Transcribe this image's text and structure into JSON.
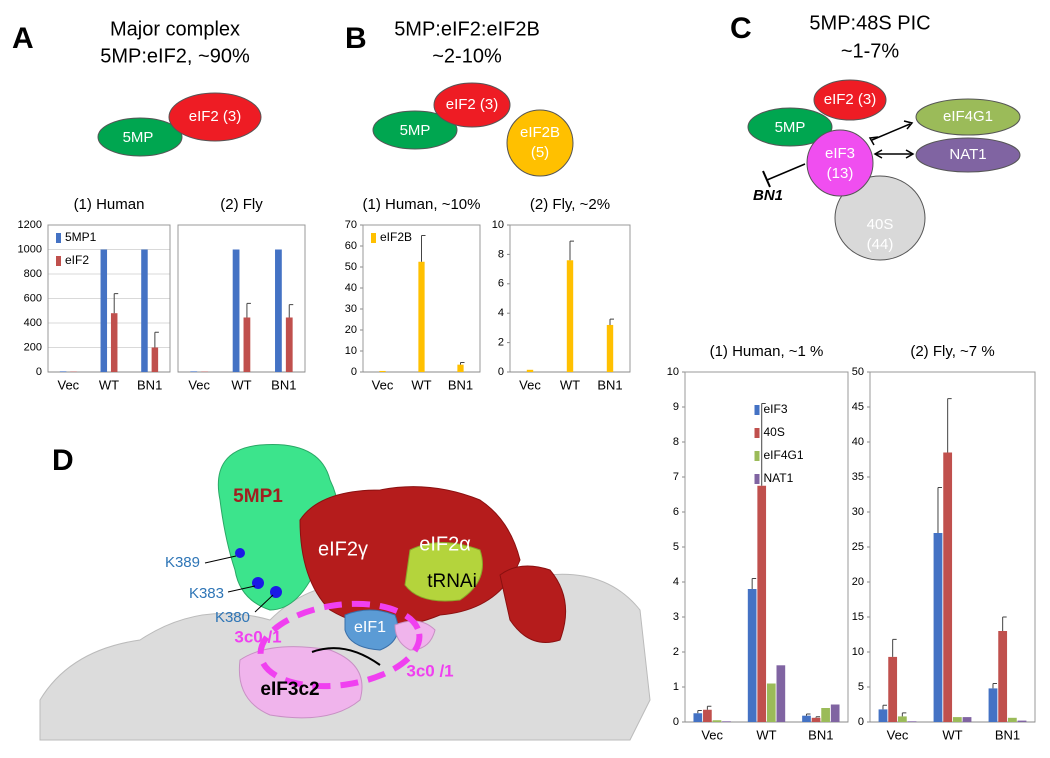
{
  "panels": [
    {
      "letter": "A",
      "title": [
        "Major complex",
        "5MP:eIF2, ~90%"
      ],
      "nodes": [
        "5MP",
        "eIF2 (3)"
      ]
    },
    {
      "letter": "B",
      "title": [
        "5MP:eIF2:eIF2B",
        "~2-10%"
      ],
      "nodes": [
        "5MP",
        "eIF2 (3)",
        "eIF2B",
        "(5)"
      ]
    },
    {
      "letter": "C",
      "title": [
        "5MP:48S PIC",
        "~1-7%"
      ],
      "nodes": [
        "eIF2 (3)",
        "5MP",
        "eIF4G1",
        "eIF3",
        "(13)",
        "NAT1",
        "40S",
        "(44)"
      ],
      "inhibitor": "BN1"
    },
    {
      "letter": "D",
      "labels": [
        "5MP1",
        "eIF2γ",
        "eIF2α",
        "tRNAi",
        "eIF1",
        "K389",
        "K383",
        "K380",
        "3c0 /1",
        "3c0 /1",
        "eIF3c2"
      ]
    }
  ],
  "chart_data": [
    {
      "type": "bar",
      "title": "(1) Human",
      "categories": [
        "Vec",
        "WT",
        "BN1"
      ],
      "ylim": [
        0,
        1200
      ],
      "yticks": [
        0,
        200,
        400,
        600,
        800,
        1000,
        1200
      ],
      "grid": true,
      "legend": "upper left",
      "series": [
        {
          "name": "5MP1",
          "color": "#4472c4",
          "values": [
            5,
            1000,
            1000
          ],
          "errors": [
            null,
            null,
            null
          ]
        },
        {
          "name": "eIF2",
          "color": "#c0504d",
          "values": [
            3,
            480,
            200
          ],
          "errors": [
            null,
            160,
            125
          ]
        }
      ]
    },
    {
      "type": "bar",
      "title": "(2) Fly",
      "categories": [
        "Vec",
        "WT",
        "BN1"
      ],
      "ylim": [
        0,
        1200
      ],
      "grid": true,
      "series": [
        {
          "color": "#4472c4",
          "values": [
            5,
            1000,
            1000
          ],
          "errors": [
            null,
            null,
            null
          ]
        },
        {
          "color": "#c0504d",
          "values": [
            3,
            445,
            445
          ],
          "errors": [
            null,
            115,
            105
          ]
        }
      ]
    },
    {
      "type": "bar",
      "title": "(1) Human, ~10%",
      "categories": [
        "Vec",
        "WT",
        "BN1"
      ],
      "ylim": [
        0,
        70
      ],
      "yticks": [
        0,
        10,
        20,
        30,
        40,
        50,
        60,
        70
      ],
      "legend": "upper left",
      "series": [
        {
          "name": "eIF2B",
          "color": "#ffc000",
          "values": [
            0.5,
            52.5,
            3.5
          ],
          "errors": [
            null,
            12.5,
            1
          ]
        }
      ]
    },
    {
      "type": "bar",
      "title": "(2) Fly, ~2%",
      "categories": [
        "Vec",
        "WT",
        "BN1"
      ],
      "ylim": [
        0,
        10
      ],
      "yticks": [
        0,
        2,
        4,
        6,
        8,
        10
      ],
      "series": [
        {
          "color": "#ffc000",
          "values": [
            0.15,
            7.6,
            3.2
          ],
          "errors": [
            null,
            1.3,
            0.4
          ]
        }
      ]
    },
    {
      "type": "bar",
      "title": "(1) Human, ~1 %",
      "categories": [
        "Vec",
        "WT",
        "BN1"
      ],
      "ylim": [
        0,
        10
      ],
      "yticks": [
        0,
        1,
        2,
        3,
        4,
        5,
        6,
        7,
        8,
        9,
        10
      ],
      "legend": "upper center",
      "series": [
        {
          "name": "eIF3",
          "color": "#4472c4",
          "values": [
            0.25,
            3.8,
            0.18
          ],
          "errors": [
            0.08,
            0.3,
            0.05
          ]
        },
        {
          "name": "40S",
          "color": "#c0504d",
          "values": [
            0.35,
            6.75,
            0.12
          ],
          "errors": [
            0.1,
            2.35,
            0.03
          ]
        },
        {
          "name": "eIF4G1",
          "color": "#9bbb59",
          "values": [
            0.05,
            1.1,
            0.4
          ],
          "errors": [
            null,
            null,
            null
          ]
        },
        {
          "name": "NAT1",
          "color": "#8064a2",
          "values": [
            0.02,
            1.62,
            0.5
          ],
          "errors": [
            null,
            null,
            null
          ]
        }
      ]
    },
    {
      "type": "bar",
      "title": "(2) Fly, ~7 %",
      "categories": [
        "Vec",
        "WT",
        "BN1"
      ],
      "ylim": [
        0,
        50
      ],
      "yticks": [
        0,
        5,
        10,
        15,
        20,
        25,
        30,
        35,
        40,
        45,
        50
      ],
      "series": [
        {
          "color": "#4472c4",
          "values": [
            1.8,
            27,
            4.8
          ],
          "errors": [
            0.6,
            6.5,
            0.7
          ]
        },
        {
          "color": "#c0504d",
          "values": [
            9.3,
            38.5,
            13
          ],
          "errors": [
            2.5,
            7.7,
            2
          ]
        },
        {
          "color": "#9bbb59",
          "values": [
            0.8,
            0.7,
            0.6
          ],
          "errors": [
            0.5,
            null,
            null
          ]
        },
        {
          "color": "#8064a2",
          "values": [
            0.1,
            0.7,
            0.2
          ],
          "errors": [
            null,
            null,
            null
          ]
        }
      ]
    }
  ]
}
